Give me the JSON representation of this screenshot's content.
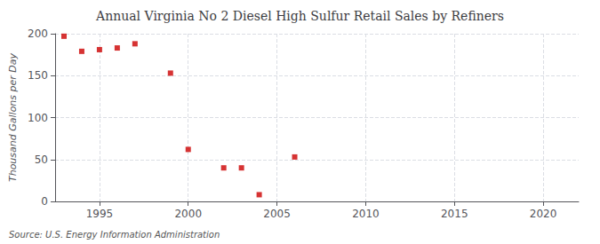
{
  "chart_data": {
    "type": "scatter",
    "title": "Annual Virginia No 2 Diesel High Sulfur Retail Sales by Refiners",
    "ylabel": "Thousand Gallons per Day",
    "source": "Source: U.S. Energy Information Administration",
    "x": [
      1993,
      1994,
      1995,
      1996,
      1997,
      1999,
      2000,
      2002,
      2003,
      2004,
      2006
    ],
    "values": [
      197,
      179,
      181,
      183,
      188,
      153,
      62,
      40,
      40,
      8,
      53
    ],
    "color": "#cc0000",
    "marker": "square",
    "xlim": [
      1992.5,
      2022
    ],
    "ylim": [
      0,
      200
    ],
    "xticks": [
      1995,
      2000,
      2005,
      2010,
      2015,
      2020
    ],
    "yticks": [
      0,
      50,
      100,
      150,
      200
    ],
    "grid": true
  }
}
